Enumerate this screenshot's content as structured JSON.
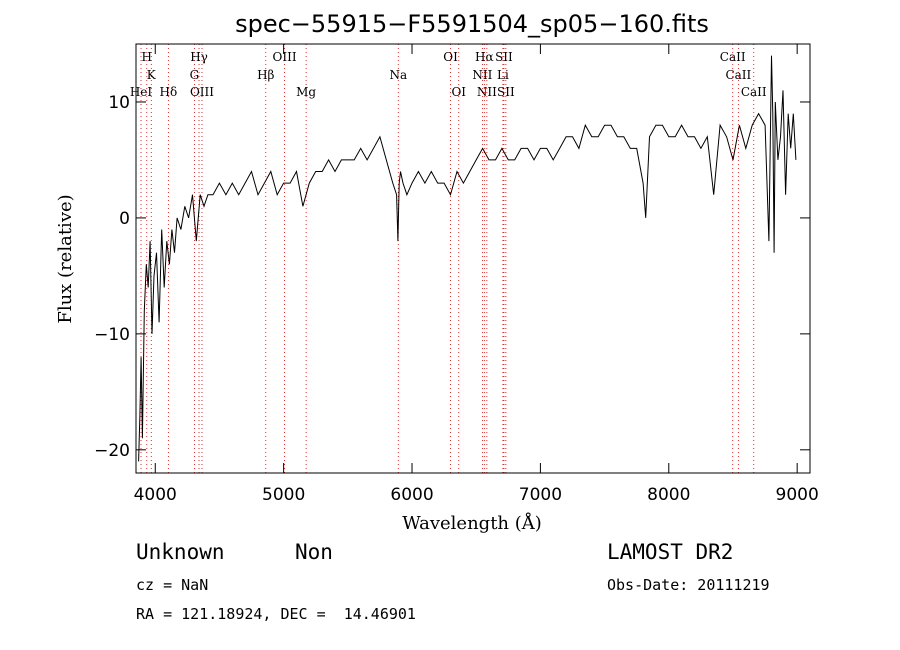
{
  "chart_data": {
    "type": "line",
    "title": "spec−55915−F5591504_sp05−160.fits",
    "xlabel": "Wavelength (Å)",
    "ylabel": "Flux (relative)",
    "xlim": [
      3850,
      9100
    ],
    "ylim": [
      -22,
      15
    ],
    "x_ticks": [
      4000,
      5000,
      6000,
      7000,
      8000,
      9000
    ],
    "x_tick_labels": [
      "4000",
      "5000",
      "6000",
      "7000",
      "8000",
      "9000"
    ],
    "y_ticks": [
      10,
      0,
      -10,
      -20
    ],
    "y_tick_labels": [
      "10",
      "0",
      "−10",
      "−20"
    ],
    "grid": false,
    "series_color": "#000000",
    "line_marker_color": "#cc0000",
    "series": [
      {
        "x": [
          3870,
          3880,
          3890,
          3900,
          3915,
          3930,
          3945,
          3960,
          3975,
          3990,
          4010,
          4030,
          4050,
          4070,
          4090,
          4110,
          4130,
          4150,
          4170,
          4200,
          4230,
          4260,
          4290,
          4320,
          4350,
          4380,
          4410,
          4450,
          4500,
          4550,
          4600,
          4650,
          4700,
          4750,
          4800,
          4850,
          4900,
          4950,
          5000,
          5050,
          5100,
          5150,
          5200,
          5250,
          5300,
          5350,
          5400,
          5450,
          5500,
          5550,
          5600,
          5650,
          5700,
          5750,
          5800,
          5850,
          5880,
          5890,
          5900,
          5910,
          5930,
          5960,
          6000,
          6050,
          6100,
          6150,
          6200,
          6250,
          6300,
          6350,
          6400,
          6450,
          6500,
          6550,
          6600,
          6650,
          6700,
          6750,
          6800,
          6850,
          6900,
          6950,
          7000,
          7050,
          7100,
          7150,
          7200,
          7250,
          7300,
          7350,
          7400,
          7450,
          7500,
          7550,
          7600,
          7650,
          7700,
          7750,
          7800,
          7820,
          7850,
          7900,
          7950,
          8000,
          8050,
          8100,
          8150,
          8200,
          8250,
          8300,
          8350,
          8400,
          8450,
          8500,
          8550,
          8600,
          8650,
          8700,
          8750,
          8780,
          8800,
          8810,
          8820,
          8830,
          8850,
          8870,
          8890,
          8910,
          8930,
          8950,
          8970,
          8990
        ],
        "y": [
          -21,
          -17,
          -12,
          -19,
          -8,
          -4,
          -6,
          -2,
          -10,
          -5,
          -3,
          -9,
          -1,
          -6,
          -2,
          -4,
          -1,
          -3,
          0,
          -1,
          1,
          0,
          2,
          -2,
          2,
          1,
          2,
          2,
          3,
          2,
          3,
          2,
          3,
          4,
          2,
          3,
          4,
          2,
          3,
          3,
          4,
          1,
          3,
          4,
          4,
          5,
          4,
          5,
          5,
          5,
          6,
          5,
          6,
          7,
          5,
          3,
          2,
          -2,
          3,
          4,
          3,
          2,
          3,
          4,
          3,
          4,
          3,
          3,
          2,
          4,
          3,
          4,
          5,
          6,
          5,
          5,
          6,
          5,
          5,
          6,
          6,
          5,
          6,
          6,
          5,
          6,
          7,
          7,
          6,
          8,
          7,
          7,
          8,
          8,
          7,
          7,
          6,
          6,
          3,
          0,
          7,
          8,
          8,
          7,
          7,
          8,
          7,
          7,
          6,
          7,
          2,
          8,
          7,
          5,
          8,
          6,
          8,
          9,
          8,
          -2,
          14,
          9,
          -3,
          10,
          5,
          7,
          11,
          2,
          9,
          6,
          9,
          5
        ]
      }
    ],
    "spectral_lines": [
      {
        "label": "H",
        "x": 3934,
        "row": 0
      },
      {
        "label": "K",
        "x": 3969,
        "row": 1
      },
      {
        "label": "HeI",
        "x": 3889,
        "row": 2
      },
      {
        "label": "Hδ",
        "x": 4102,
        "row": 2
      },
      {
        "label": "Hγ",
        "x": 4341,
        "row": 0
      },
      {
        "label": "G",
        "x": 4305,
        "row": 1
      },
      {
        "label": "OIII",
        "x": 4364,
        "row": 2
      },
      {
        "label": "OIII",
        "x": 5007,
        "row": 0
      },
      {
        "label": "Hβ",
        "x": 4861,
        "row": 1
      },
      {
        "label": "Mg",
        "x": 5175,
        "row": 2
      },
      {
        "label": "Na",
        "x": 5893,
        "row": 1
      },
      {
        "label": "OI",
        "x": 6300,
        "row": 0
      },
      {
        "label": "OI",
        "x": 6364,
        "row": 2
      },
      {
        "label": "Hα",
        "x": 6563,
        "row": 0
      },
      {
        "label": "SII",
        "x": 6716,
        "row": 0
      },
      {
        "label": "NII",
        "x": 6548,
        "row": 1
      },
      {
        "label": "Li",
        "x": 6708,
        "row": 1
      },
      {
        "label": "NII",
        "x": 6583,
        "row": 2
      },
      {
        "label": "SII",
        "x": 6731,
        "row": 2
      },
      {
        "label": "CaII",
        "x": 8498,
        "row": 0
      },
      {
        "label": "CaII",
        "x": 8542,
        "row": 1
      },
      {
        "label": "CaII",
        "x": 8662,
        "row": 2
      }
    ]
  },
  "footer": {
    "object_class": "Unknown",
    "subclass": "Non",
    "survey": "LAMOST DR2",
    "redshift": "cz = NaN",
    "obs_date": "Obs-Date: 20111219",
    "coords": "RA = 121.18924, DEC =  14.46901"
  }
}
